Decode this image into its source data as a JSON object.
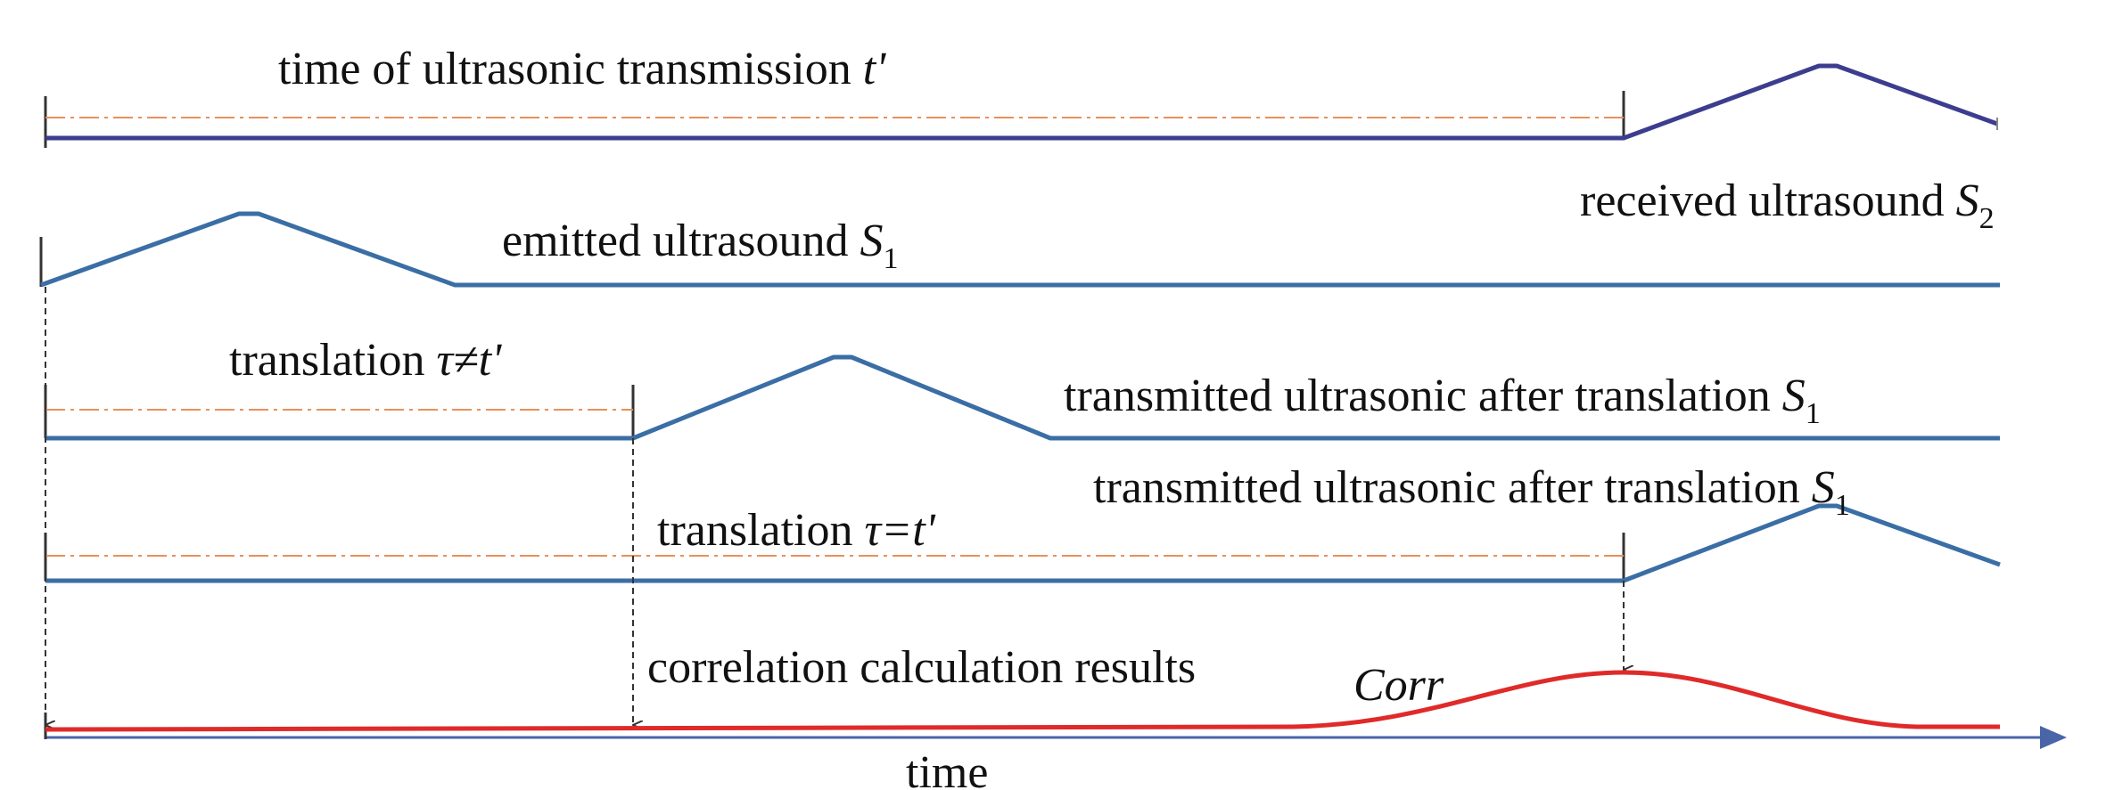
{
  "labels": {
    "transmission_time": "time of ultrasonic transmission",
    "transmission_time_symbol": "t'",
    "received": "received ultrasound",
    "received_symbol": "S",
    "received_symbol_sub": "2",
    "emitted": "emitted ultrasound",
    "emitted_symbol": "S",
    "emitted_symbol_sub": "1",
    "translation_neq": "translation",
    "translation_neq_expr": "τ≠t'",
    "transmitted_after_1": "transmitted ultrasonic after translation",
    "transmitted_after_1_symbol": "S",
    "transmitted_after_1_sub": "1",
    "transmitted_after_2": "transmitted ultrasonic after translation",
    "transmitted_after_2_symbol": "S",
    "transmitted_after_2_sub": "1",
    "translation_eq": "translation",
    "translation_eq_expr": "τ=t'",
    "correlation": "correlation calculation results",
    "corr": "Corr",
    "time_axis": "time"
  },
  "colors": {
    "received_wave": "#3d3d8f",
    "signal_wave": "#3a6ea5",
    "corr_curve": "#e02a2a",
    "dashdot_guide": "#e8905a",
    "time_axis": "#4a64a8",
    "drop_arrow": "#333333"
  }
}
